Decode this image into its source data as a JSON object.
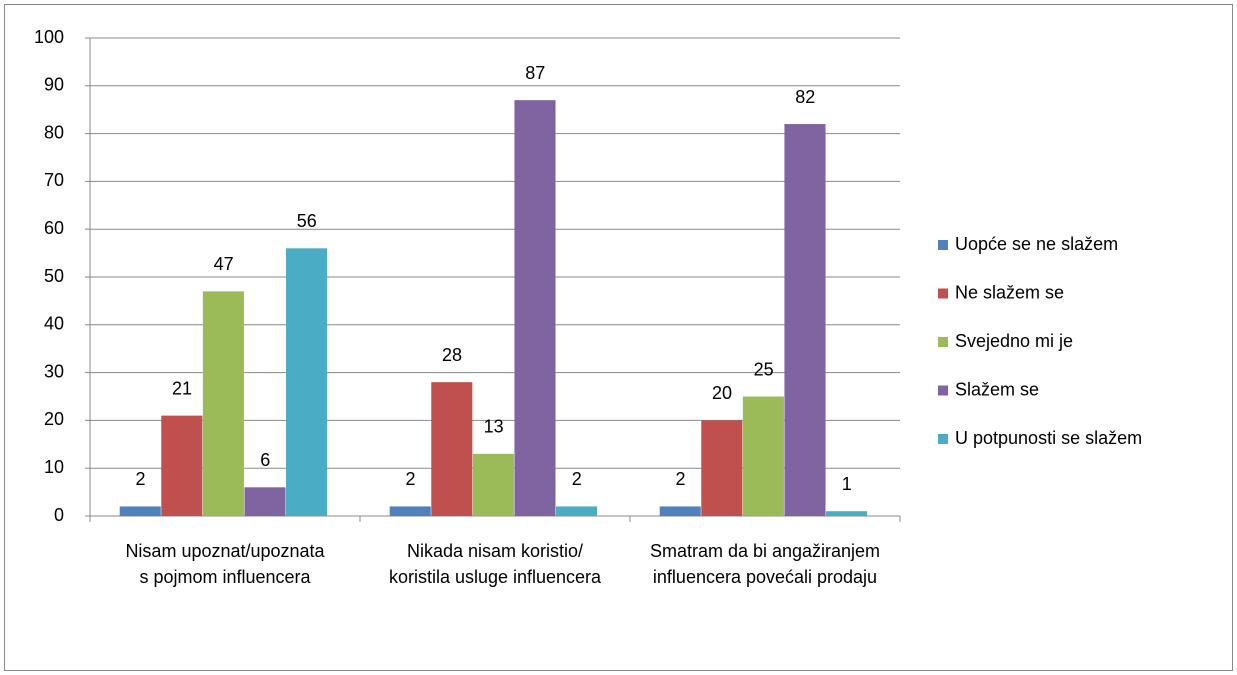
{
  "chart_data": {
    "type": "bar",
    "categories": [
      "Nisam upoznat/upoznata s pojmom influencera",
      "Nikada nisam koristio/ koristila usluge influencera",
      "Smatram da bi angažiranjem influencera povećali prodaju"
    ],
    "series": [
      {
        "name": "Uopće se ne slažem",
        "color": "#4f81bd",
        "values": [
          2,
          2,
          2
        ]
      },
      {
        "name": "Ne slažem se",
        "color": "#c0504d",
        "values": [
          21,
          28,
          20
        ]
      },
      {
        "name": "Svejedno mi je",
        "color": "#9bbb59",
        "values": [
          47,
          13,
          25
        ]
      },
      {
        "name": "Slažem se",
        "color": "#8064a2",
        "values": [
          6,
          87,
          82
        ]
      },
      {
        "name": "U potpunosti se slažem",
        "color": "#4bacc6",
        "values": [
          56,
          2,
          1
        ]
      }
    ],
    "ylim": [
      0,
      100
    ],
    "yticks": [
      0,
      10,
      20,
      30,
      40,
      50,
      60,
      70,
      80,
      90,
      100
    ],
    "grid": true,
    "legend": "right"
  }
}
